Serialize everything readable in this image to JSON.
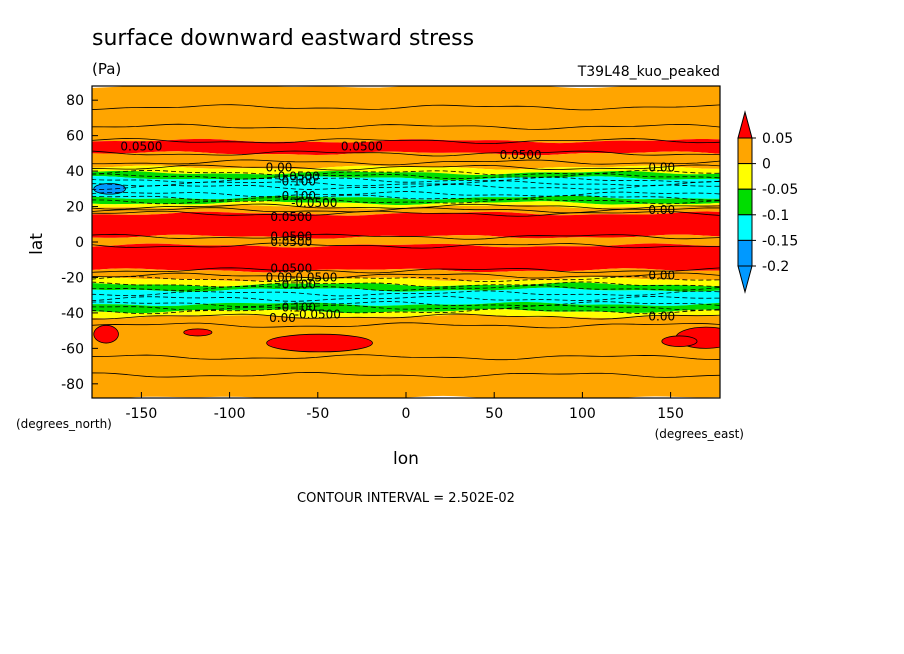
{
  "chart_data": {
    "type": "heatmap",
    "title": "surface downward eastward stress",
    "units": "(Pa)",
    "run_label": "T39L48_kuo_peaked",
    "xlabel": "lon",
    "ylabel": "lat",
    "x_units": "(degrees_east)",
    "y_units": "(degrees_north)",
    "footer": "CONTOUR INTERVAL = 2.502E-02",
    "xlim": [
      -178,
      178
    ],
    "ylim": [
      -88,
      88
    ],
    "x_ticks": [
      -150,
      -100,
      -50,
      0,
      50,
      100,
      150
    ],
    "y_ticks": [
      -80,
      -60,
      -40,
      -20,
      0,
      20,
      40,
      60,
      80
    ],
    "grid": false,
    "legend_position": "right",
    "colorbar": {
      "levels": [
        -0.2,
        -0.15,
        -0.1,
        -0.05,
        0,
        0.05
      ],
      "tick_labels": [
        "0.05",
        "0",
        "-0.05",
        "-0.1",
        "-0.15",
        "-0.2"
      ],
      "colors": {
        "above_0.05": "#ff0000",
        "0_to_0.05": "#ffa500",
        "-0.05_to_0": "#ffff00",
        "-0.1_to_-0.05": "#00dd00",
        "-0.15_to_-0.1": "#00ffff",
        "below_-0.15": "#0099ff"
      }
    },
    "zonal_bands": [
      {
        "lat_from": 88,
        "lat_to": 57,
        "class": "0_to_0.05"
      },
      {
        "lat_from": 57,
        "lat_to": 50,
        "class": "above_0.05"
      },
      {
        "lat_from": 50,
        "lat_to": 42,
        "class": "0_to_0.05"
      },
      {
        "lat_from": 42,
        "lat_to": 39,
        "class": "-0.05_to_0"
      },
      {
        "lat_from": 39,
        "lat_to": 36,
        "class": "-0.1_to_-0.05"
      },
      {
        "lat_from": 36,
        "lat_to": 25,
        "class": "-0.15_to_-0.1"
      },
      {
        "lat_from": 25,
        "lat_to": 22,
        "class": "-0.1_to_-0.05"
      },
      {
        "lat_from": 22,
        "lat_to": 20,
        "class": "-0.05_to_0"
      },
      {
        "lat_from": 20,
        "lat_to": 16,
        "class": "0_to_0.05"
      },
      {
        "lat_from": 16,
        "lat_to": 3,
        "class": "above_0.05"
      },
      {
        "lat_from": 3,
        "lat_to": -2,
        "class": "0_to_0.05"
      },
      {
        "lat_from": -2,
        "lat_to": -16,
        "class": "above_0.05"
      },
      {
        "lat_from": -16,
        "lat_to": -21,
        "class": "0_to_0.05"
      },
      {
        "lat_from": -21,
        "lat_to": -24,
        "class": "-0.05_to_0"
      },
      {
        "lat_from": -24,
        "lat_to": -27,
        "class": "-0.1_to_-0.05"
      },
      {
        "lat_from": -27,
        "lat_to": -35,
        "class": "-0.15_to_-0.1"
      },
      {
        "lat_from": -35,
        "lat_to": -39,
        "class": "-0.1_to_-0.05"
      },
      {
        "lat_from": -39,
        "lat_to": -42,
        "class": "-0.05_to_0"
      },
      {
        "lat_from": -42,
        "lat_to": -88,
        "class": "0_to_0.05"
      }
    ],
    "patches": [
      {
        "lon": -168,
        "lat": 30,
        "dlon": 9,
        "dlat": 3,
        "class": "below_-0.15"
      },
      {
        "lon": -170,
        "lat": -52,
        "dlon": 7,
        "dlat": 5,
        "class": "above_0.05"
      },
      {
        "lon": -118,
        "lat": -51,
        "dlon": 8,
        "dlat": 2,
        "class": "above_0.05"
      },
      {
        "lon": -49,
        "lat": -57,
        "dlon": 30,
        "dlat": 5,
        "class": "above_0.05"
      },
      {
        "lon": 170,
        "lat": -54,
        "dlon": 17,
        "dlat": 6,
        "class": "above_0.05"
      },
      {
        "lon": 155,
        "lat": -56,
        "dlon": 10,
        "dlat": 3,
        "class": "above_0.05"
      }
    ],
    "contour_lines": [
      {
        "lat": 76,
        "style": "solid"
      },
      {
        "lat": 65,
        "style": "solid"
      },
      {
        "lat": 57,
        "style": "solid"
      },
      {
        "lat": 50,
        "style": "solid"
      },
      {
        "lat": 45,
        "style": "solid"
      },
      {
        "lat": 42,
        "style": "solid"
      },
      {
        "lat": 39,
        "style": "dashed"
      },
      {
        "lat": 37,
        "style": "dashed"
      },
      {
        "lat": 35,
        "style": "dashed"
      },
      {
        "lat": 33,
        "style": "dashed"
      },
      {
        "lat": 31,
        "style": "dashed"
      },
      {
        "lat": 27,
        "style": "dashed"
      },
      {
        "lat": 25,
        "style": "dashed"
      },
      {
        "lat": 23,
        "style": "dashed"
      },
      {
        "lat": 20,
        "style": "solid"
      },
      {
        "lat": 18,
        "style": "solid"
      },
      {
        "lat": 16,
        "style": "solid"
      },
      {
        "lat": 3,
        "style": "solid"
      },
      {
        "lat": -2,
        "style": "solid"
      },
      {
        "lat": -16,
        "style": "solid"
      },
      {
        "lat": -19,
        "style": "solid"
      },
      {
        "lat": -21,
        "style": "dashed"
      },
      {
        "lat": -24,
        "style": "dashed"
      },
      {
        "lat": -26,
        "style": "dashed"
      },
      {
        "lat": -29,
        "style": "dashed"
      },
      {
        "lat": -32,
        "style": "dashed"
      },
      {
        "lat": -35,
        "style": "dashed"
      },
      {
        "lat": -37,
        "style": "dashed"
      },
      {
        "lat": -39,
        "style": "dashed"
      },
      {
        "lat": -42,
        "style": "solid"
      },
      {
        "lat": -47,
        "style": "solid"
      },
      {
        "lat": -65,
        "style": "solid"
      },
      {
        "lat": -75,
        "style": "solid"
      }
    ],
    "contour_labels": [
      {
        "text": "0.0500",
        "lon": -150,
        "lat": 54
      },
      {
        "text": "0.0500",
        "lon": -25,
        "lat": 54
      },
      {
        "text": "0.0500",
        "lon": 65,
        "lat": 49
      },
      {
        "text": "0.00",
        "lon": -72,
        "lat": 42
      },
      {
        "text": "0.00",
        "lon": 145,
        "lat": 42
      },
      {
        "text": "-0.0500",
        "lon": -62,
        "lat": 37
      },
      {
        "text": "-0.100",
        "lon": -62,
        "lat": 34
      },
      {
        "text": "-0.100",
        "lon": -62,
        "lat": 26
      },
      {
        "text": "-0.0500",
        "lon": -52,
        "lat": 22
      },
      {
        "text": "0.00",
        "lon": 145,
        "lat": 18
      },
      {
        "text": "0.0500",
        "lon": -65,
        "lat": 14
      },
      {
        "text": "0.0500",
        "lon": -65,
        "lat": 3
      },
      {
        "text": "0.0500",
        "lon": -65,
        "lat": 0
      },
      {
        "text": "0.0500",
        "lon": -65,
        "lat": -15
      },
      {
        "text": "0.00",
        "lon": -72,
        "lat": -20
      },
      {
        "text": "-0.0500",
        "lon": -52,
        "lat": -20
      },
      {
        "text": "0.00",
        "lon": 145,
        "lat": -19
      },
      {
        "text": "-0.100",
        "lon": -62,
        "lat": -24
      },
      {
        "text": "-0.100",
        "lon": -62,
        "lat": -37
      },
      {
        "text": "-0.0500",
        "lon": -50,
        "lat": -41
      },
      {
        "text": "0.00",
        "lon": -70,
        "lat": -43
      },
      {
        "text": "0.00",
        "lon": 145,
        "lat": -42
      }
    ]
  }
}
